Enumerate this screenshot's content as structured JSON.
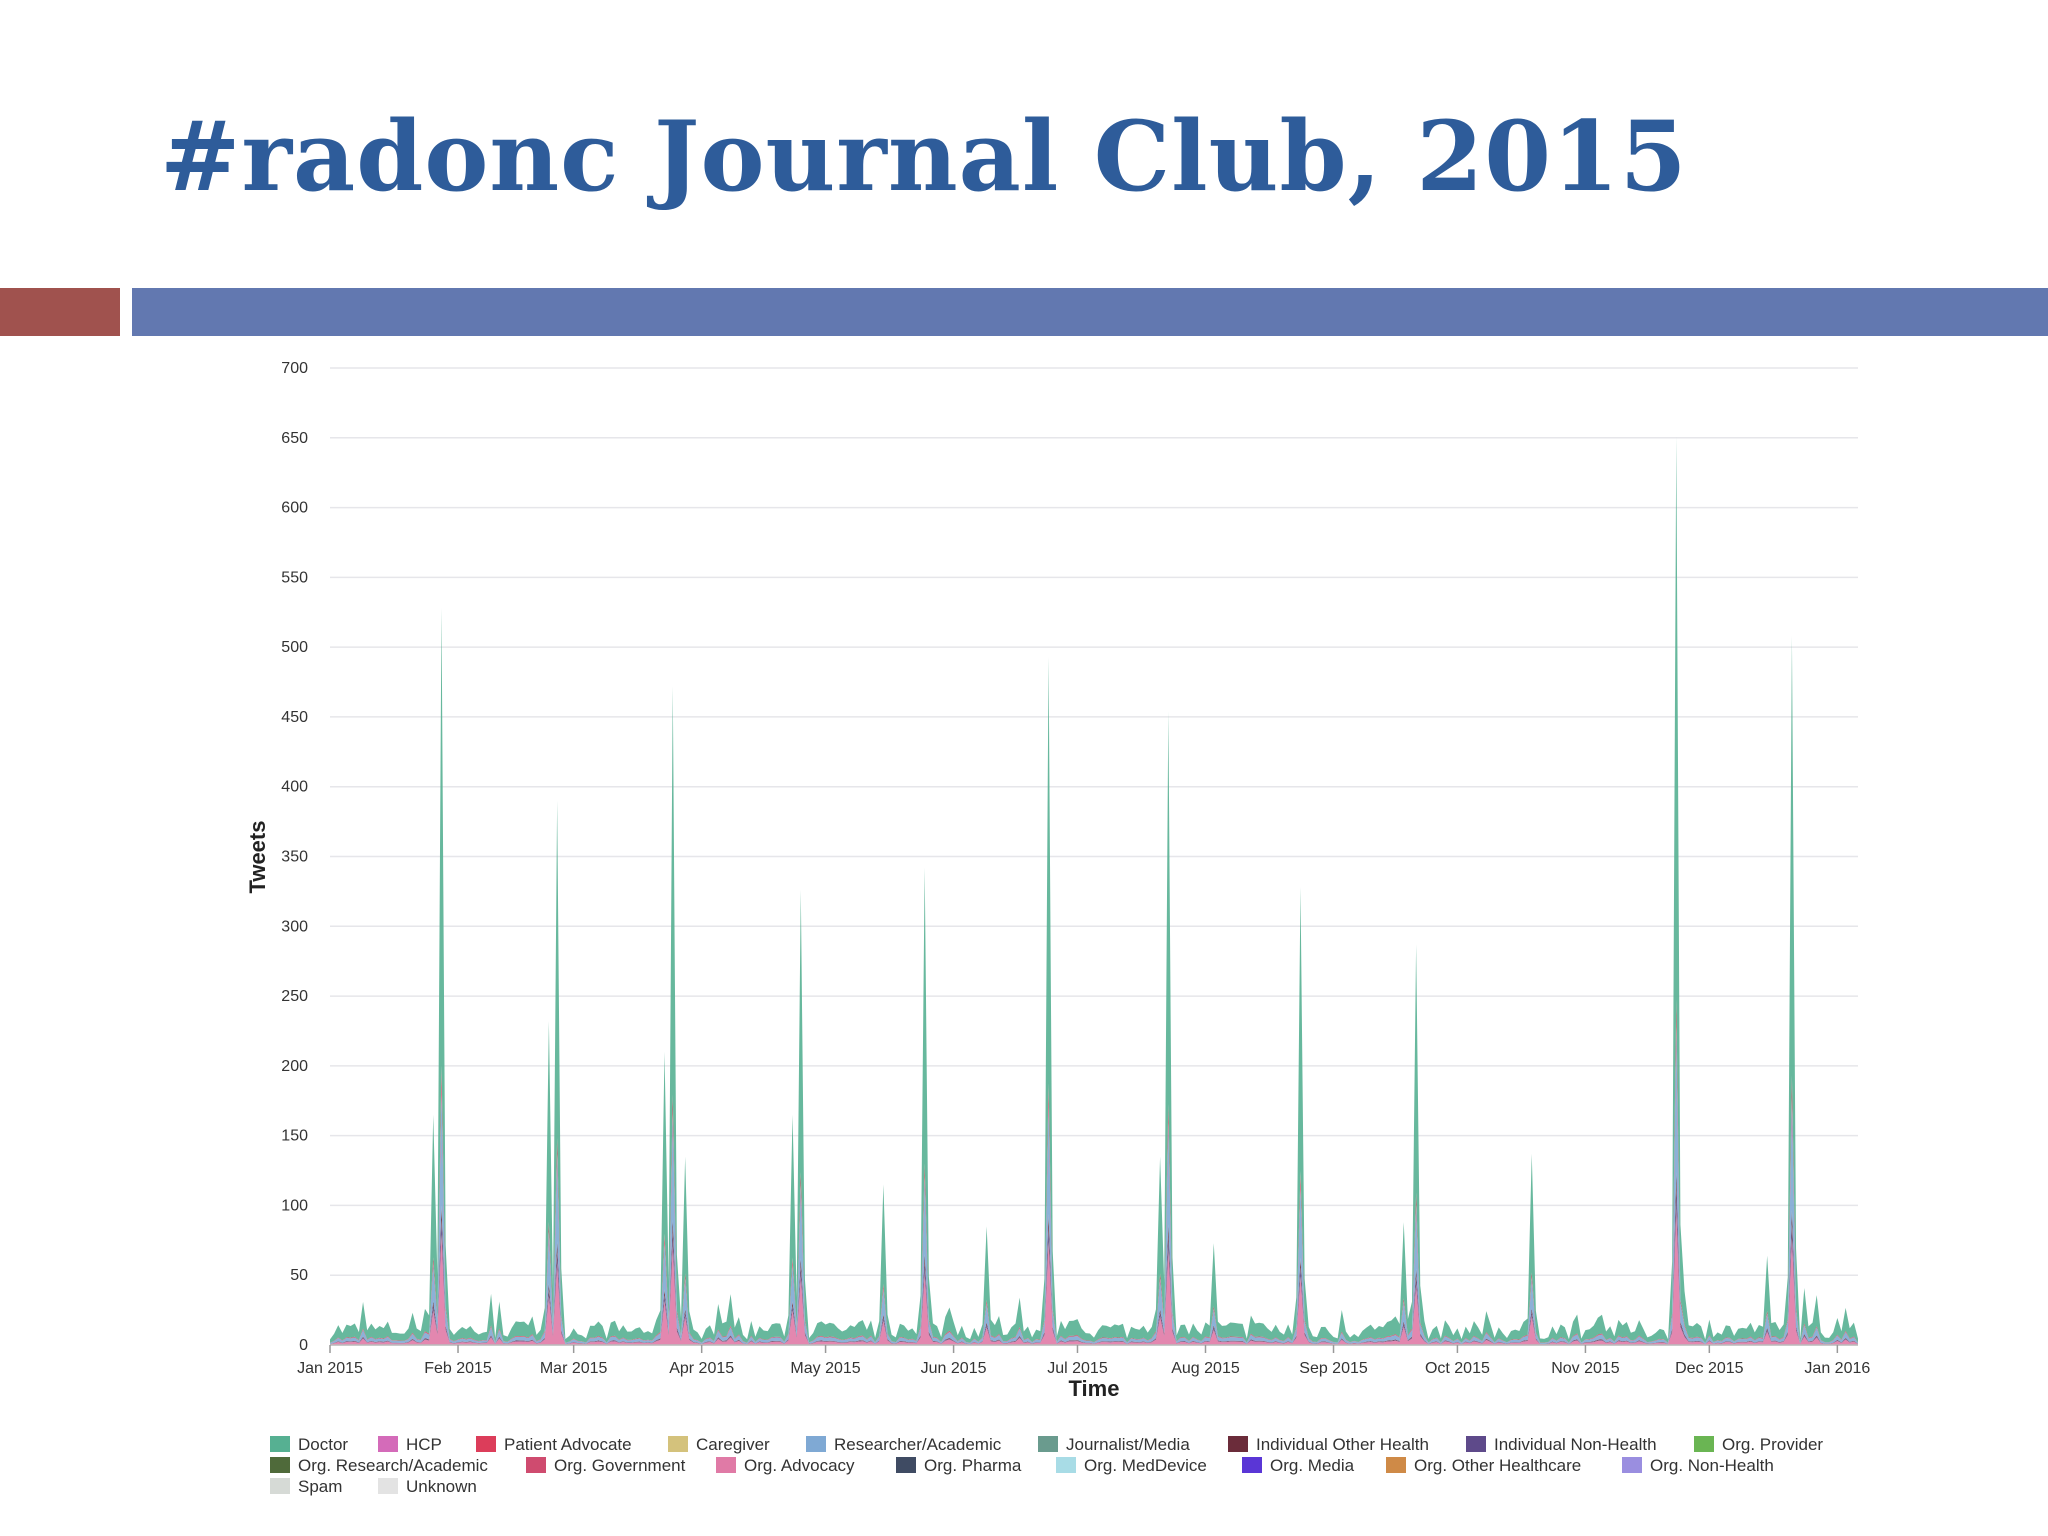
{
  "slide": {
    "title": "#radonc Journal Club, 2015"
  },
  "colors": {
    "title": "#2e5c9a",
    "bar_left": "#a0524e",
    "bar_right": "#6278b0"
  },
  "chart_data": {
    "type": "area",
    "stacked": true,
    "xlabel": "Time",
    "ylabel": "Tweets",
    "ylim": [
      0,
      700
    ],
    "yticks": [
      0,
      50,
      100,
      150,
      200,
      250,
      300,
      350,
      400,
      450,
      500,
      550,
      600,
      650,
      700
    ],
    "xlim": [
      "2015-01-01",
      "2016-01-06"
    ],
    "xticks": [
      {
        "label": "Jan 2015",
        "date": "2015-01-01"
      },
      {
        "label": "Feb 2015",
        "date": "2015-02-01"
      },
      {
        "label": "Mar 2015",
        "date": "2015-03-01"
      },
      {
        "label": "Apr 2015",
        "date": "2015-04-01"
      },
      {
        "label": "May 2015",
        "date": "2015-05-01"
      },
      {
        "label": "Jun 2015",
        "date": "2015-06-01"
      },
      {
        "label": "Jul 2015",
        "date": "2015-07-01"
      },
      {
        "label": "Aug 2015",
        "date": "2015-08-01"
      },
      {
        "label": "Sep 2015",
        "date": "2015-09-01"
      },
      {
        "label": "Oct 2015",
        "date": "2015-10-01"
      },
      {
        "label": "Nov 2015",
        "date": "2015-11-01"
      },
      {
        "label": "Dec 2015",
        "date": "2015-12-01"
      },
      {
        "label": "Jan 2016",
        "date": "2016-01-01"
      }
    ],
    "grid": true,
    "legend_position": "bottom",
    "peaks_total": [
      {
        "date": "2015-01-26",
        "total": 165
      },
      {
        "date": "2015-01-28",
        "total": 528
      },
      {
        "date": "2015-02-23",
        "total": 232
      },
      {
        "date": "2015-02-25",
        "total": 390
      },
      {
        "date": "2015-03-23",
        "total": 210
      },
      {
        "date": "2015-03-25",
        "total": 472
      },
      {
        "date": "2015-03-28",
        "total": 135
      },
      {
        "date": "2015-04-23",
        "total": 165
      },
      {
        "date": "2015-04-25",
        "total": 326
      },
      {
        "date": "2015-05-15",
        "total": 115
      },
      {
        "date": "2015-05-25",
        "total": 342
      },
      {
        "date": "2015-06-09",
        "total": 85
      },
      {
        "date": "2015-06-24",
        "total": 493
      },
      {
        "date": "2015-07-21",
        "total": 135
      },
      {
        "date": "2015-07-23",
        "total": 454
      },
      {
        "date": "2015-08-03",
        "total": 73
      },
      {
        "date": "2015-08-24",
        "total": 328
      },
      {
        "date": "2015-09-18",
        "total": 88
      },
      {
        "date": "2015-09-21",
        "total": 287
      },
      {
        "date": "2015-10-19",
        "total": 137
      },
      {
        "date": "2015-11-23",
        "total": 651
      },
      {
        "date": "2015-12-15",
        "total": 64
      },
      {
        "date": "2015-12-21",
        "total": 508
      }
    ],
    "series": [
      {
        "name": "Doctor",
        "color": "#56b092",
        "peak_share": 0.62
      },
      {
        "name": "HCP",
        "color": "#d46bb9",
        "peak_share": 0.0
      },
      {
        "name": "Patient Advocate",
        "color": "#dc3d5a",
        "peak_share": 0.03
      },
      {
        "name": "Caregiver",
        "color": "#d4c27c",
        "peak_share": 0.0
      },
      {
        "name": "Researcher/Academic",
        "color": "#7fa9d4",
        "peak_share": 0.16
      },
      {
        "name": "Journalist/Media",
        "color": "#6a9b8e",
        "peak_share": 0.0
      },
      {
        "name": "Individual Other Health",
        "color": "#6b2c3a",
        "peak_share": 0.02
      },
      {
        "name": "Individual Non-Health",
        "color": "#5e4a8a",
        "peak_share": 0.02
      },
      {
        "name": "Org. Provider",
        "color": "#6ab553",
        "peak_share": 0.0
      },
      {
        "name": "Org. Research/Academic",
        "color": "#4f6a3a",
        "peak_share": 0.0
      },
      {
        "name": "Org. Government",
        "color": "#cf4b6f",
        "peak_share": 0.0
      },
      {
        "name": "Org. Advocacy",
        "color": "#e07aa6",
        "peak_share": 0.15
      },
      {
        "name": "Org. Pharma",
        "color": "#3f4b63",
        "peak_share": 0.0
      },
      {
        "name": "Org. MedDevice",
        "color": "#a8dce6",
        "peak_share": 0.0
      },
      {
        "name": "Org. Media",
        "color": "#5a36d6",
        "peak_share": 0.0
      },
      {
        "name": "Org. Other Healthcare",
        "color": "#cf8a47",
        "peak_share": 0.0
      },
      {
        "name": "Org. Non-Health",
        "color": "#9a8ee0",
        "peak_share": 0.0
      },
      {
        "name": "Spam",
        "color": "#d6dad6",
        "peak_share": 0.0
      },
      {
        "name": "Unknown",
        "color": "#e3e3e3",
        "peak_share": 0.0
      }
    ]
  }
}
